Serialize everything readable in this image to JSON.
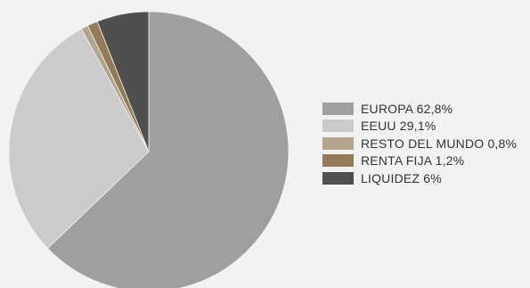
{
  "chart_data": {
    "type": "pie",
    "title": "",
    "start": "12 o'clock",
    "direction": "clockwise",
    "legend_position": "right",
    "slices": [
      {
        "label": "EUROPA",
        "value": 62.8,
        "display": "62,8%",
        "legend_text": "EUROPA 62,8%",
        "color": "#a09f9d"
      },
      {
        "label": "EEUU",
        "value": 29.1,
        "display": "29,1%",
        "legend_text": "EEUU 29,1%",
        "color": "#cbcbcb"
      },
      {
        "label": "RESTO DEL MUNDO",
        "value": 0.8,
        "display": "0,8%",
        "legend_text": "RESTO DEL MUNDO 0,8%",
        "color": "#b3a48d"
      },
      {
        "label": "RENTA FIJA",
        "value": 1.2,
        "display": "1,2%",
        "legend_text": "RENTA FIJA 1,2%",
        "color": "#937a5b"
      },
      {
        "label": "LIQUIDEZ",
        "value": 6,
        "display": "6%",
        "legend_text": "LIQUIDEZ 6%",
        "color": "#4f4f4f"
      }
    ]
  }
}
